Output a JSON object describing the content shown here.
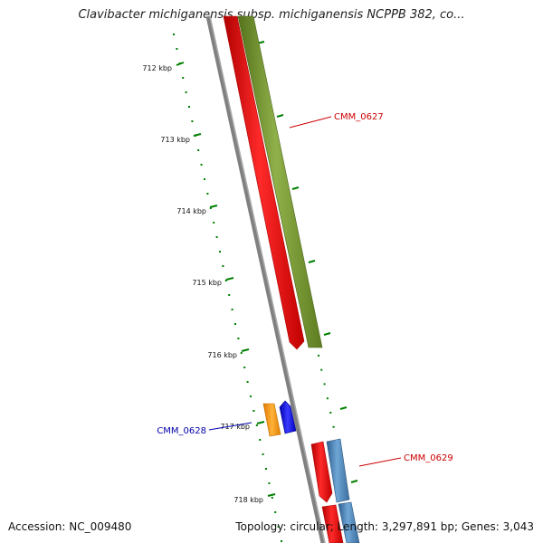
{
  "title": "Clavibacter michiganensis subsp. michiganensis NCPPB 382, co...",
  "ticks": [
    "712 kbp",
    "713 kbp",
    "714 kbp",
    "715 kbp",
    "716 kbp",
    "717 kbp",
    "718 kbp"
  ],
  "genes": [
    {
      "name": "CMM_0627",
      "color": "#cc0000"
    },
    {
      "name": "CMM_0628",
      "color": "#0000aa"
    },
    {
      "name": "CMM_0629",
      "color": "#cc0000"
    }
  ],
  "colors": {
    "forward_cds": "#ff0000",
    "olive_feature": "#6b8e23",
    "orange_feature": "#ff9900",
    "blue_feature": "#0000ff",
    "steelblue_feature": "#4682b4",
    "backbone": "#808080",
    "tick": "#008000"
  },
  "footer": {
    "accession": "Accession: NC_009480",
    "summary": "Topology: circular; Length: 3,297,891 bp; Genes: 3,043"
  }
}
